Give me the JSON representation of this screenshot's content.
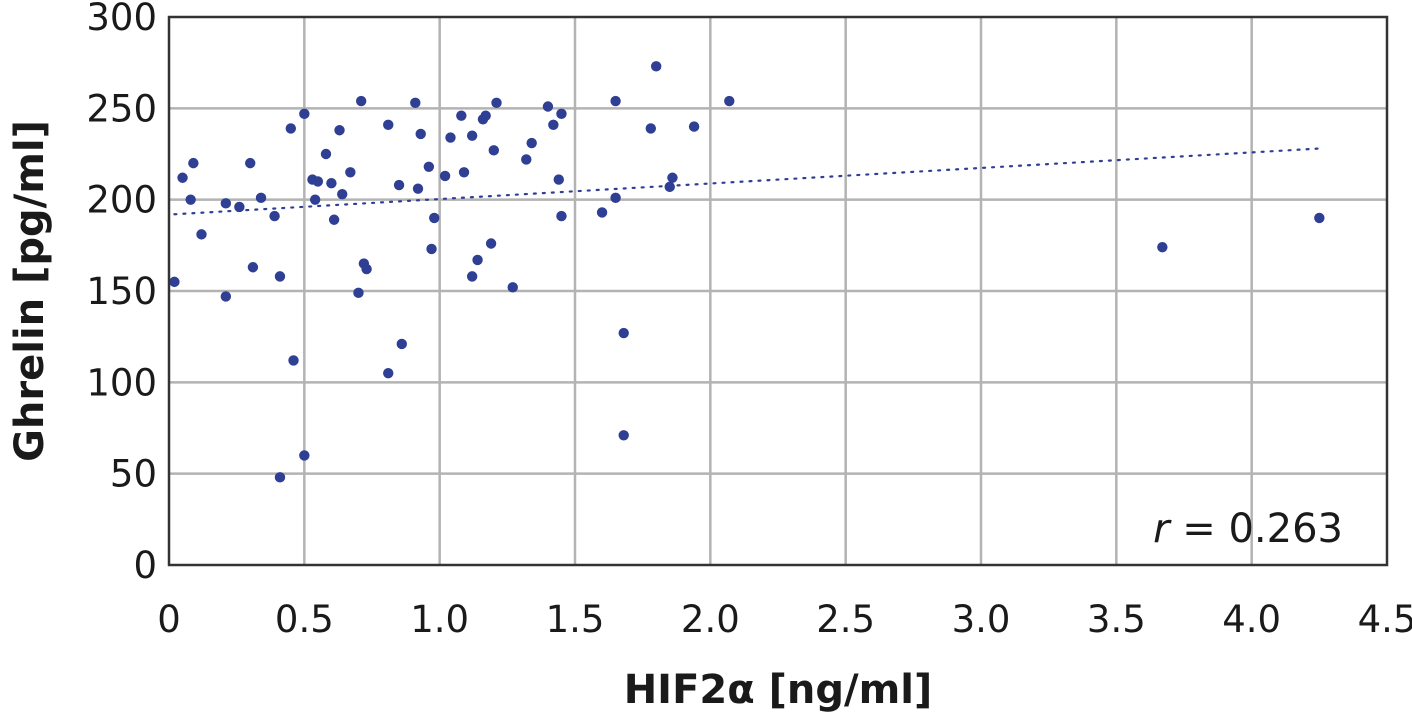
{
  "chart_data": {
    "type": "scatter",
    "xlabel": "HIF2α [ng/ml]",
    "ylabel": "Ghrelin [pg/ml]",
    "xlim": [
      0,
      4.5
    ],
    "ylim": [
      0,
      300
    ],
    "x_ticks": [
      "0",
      "0.5",
      "1.0",
      "1.5",
      "2.0",
      "2.5",
      "3.0",
      "3.5",
      "4.0",
      "4.5"
    ],
    "y_ticks": [
      "0",
      "50",
      "100",
      "150",
      "200",
      "250",
      "300"
    ],
    "grid": true,
    "annotation": {
      "var": "r",
      "text": " = 0.263"
    },
    "trendline": {
      "style": "dotted",
      "x": [
        0.02,
        4.25
      ],
      "y": [
        192,
        228
      ]
    },
    "colors": {
      "points": "#2e3f94",
      "trendline": "#2e3f94",
      "grid": "#b3b3b3",
      "frame": "#333333"
    },
    "series": [
      {
        "points": [
          [
            0.02,
            155
          ],
          [
            0.05,
            212
          ],
          [
            0.08,
            200
          ],
          [
            0.09,
            220
          ],
          [
            0.12,
            181
          ],
          [
            0.21,
            198
          ],
          [
            0.21,
            147
          ],
          [
            0.26,
            196
          ],
          [
            0.3,
            220
          ],
          [
            0.31,
            163
          ],
          [
            0.34,
            201
          ],
          [
            0.39,
            191
          ],
          [
            0.41,
            158
          ],
          [
            0.41,
            48
          ],
          [
            0.45,
            239
          ],
          [
            0.46,
            112
          ],
          [
            0.5,
            247
          ],
          [
            0.5,
            60
          ],
          [
            0.53,
            211
          ],
          [
            0.54,
            200
          ],
          [
            0.55,
            210
          ],
          [
            0.58,
            225
          ],
          [
            0.6,
            209
          ],
          [
            0.61,
            189
          ],
          [
            0.63,
            238
          ],
          [
            0.64,
            203
          ],
          [
            0.67,
            215
          ],
          [
            0.7,
            149
          ],
          [
            0.71,
            254
          ],
          [
            0.72,
            165
          ],
          [
            0.73,
            162
          ],
          [
            0.81,
            241
          ],
          [
            0.81,
            105
          ],
          [
            0.85,
            208
          ],
          [
            0.86,
            121
          ],
          [
            0.91,
            253
          ],
          [
            0.92,
            206
          ],
          [
            0.93,
            236
          ],
          [
            0.96,
            218
          ],
          [
            0.97,
            173
          ],
          [
            0.98,
            190
          ],
          [
            1.02,
            213
          ],
          [
            1.04,
            234
          ],
          [
            1.08,
            246
          ],
          [
            1.09,
            215
          ],
          [
            1.12,
            158
          ],
          [
            1.12,
            235
          ],
          [
            1.14,
            167
          ],
          [
            1.16,
            244
          ],
          [
            1.17,
            246
          ],
          [
            1.19,
            176
          ],
          [
            1.2,
            227
          ],
          [
            1.21,
            253
          ],
          [
            1.27,
            152
          ],
          [
            1.32,
            222
          ],
          [
            1.34,
            231
          ],
          [
            1.4,
            251
          ],
          [
            1.42,
            241
          ],
          [
            1.44,
            211
          ],
          [
            1.45,
            247
          ],
          [
            1.45,
            191
          ],
          [
            1.6,
            193
          ],
          [
            1.65,
            254
          ],
          [
            1.65,
            201
          ],
          [
            1.68,
            127
          ],
          [
            1.68,
            71
          ],
          [
            1.78,
            239
          ],
          [
            1.8,
            273
          ],
          [
            1.85,
            207
          ],
          [
            1.86,
            212
          ],
          [
            1.94,
            240
          ],
          [
            2.07,
            254
          ],
          [
            3.67,
            174
          ],
          [
            4.25,
            190
          ]
        ]
      }
    ]
  }
}
